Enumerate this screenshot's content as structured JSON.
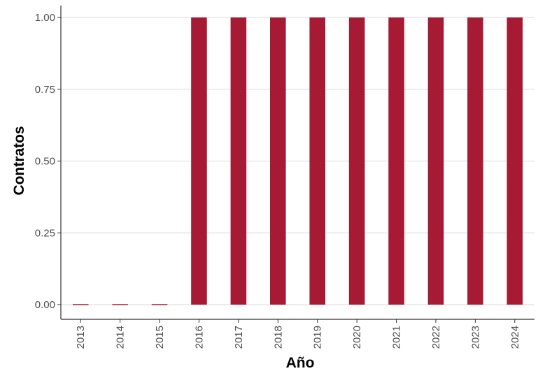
{
  "chart_data": {
    "type": "bar",
    "categories": [
      "2013",
      "2014",
      "2015",
      "2016",
      "2017",
      "2018",
      "2019",
      "2020",
      "2021",
      "2022",
      "2023",
      "2024"
    ],
    "values": [
      0,
      0,
      0,
      1,
      1,
      1,
      1,
      1,
      1,
      1,
      1,
      1
    ],
    "title": "",
    "xlabel": "Año",
    "ylabel": "Contratos",
    "ylim": [
      0,
      1
    ],
    "yticks": [
      "0.00",
      "0.25",
      "0.50",
      "0.75",
      "1.00"
    ],
    "grid": "horizontal",
    "legend": "none",
    "bar_color": "#a61b33",
    "grid_color": "#d9d9d9",
    "axis_color": "#333333"
  }
}
